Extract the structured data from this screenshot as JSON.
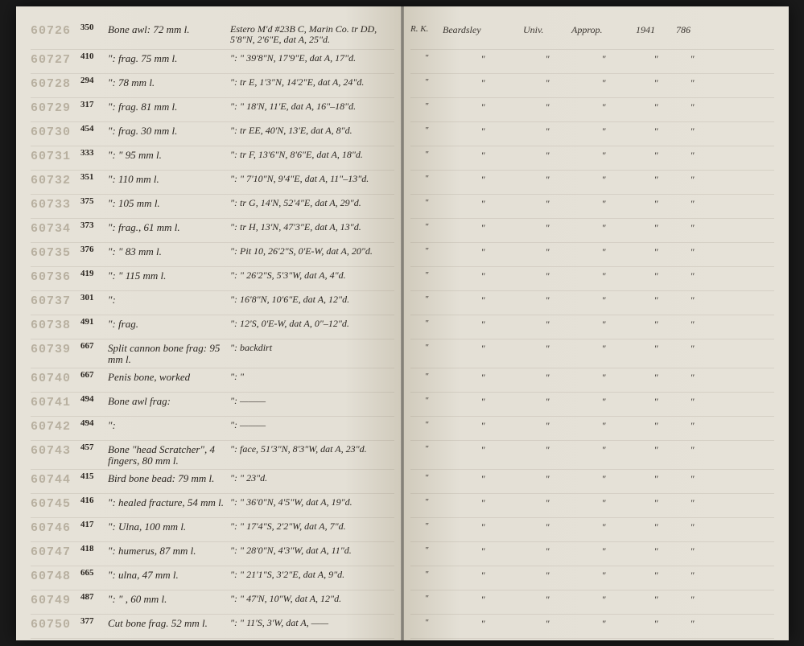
{
  "page": {
    "background_color": "#e6e2d8",
    "text_color": "#2a2520",
    "id_color": "#b8b0a0",
    "rule_color": "rgba(120,110,95,0.15)"
  },
  "header_right": {
    "col1": "R. K.",
    "col2": "Beardsley",
    "col3": "Univ.",
    "col4": "Approp.",
    "col5": "1941",
    "col6": "786"
  },
  "rows": [
    {
      "id": "60726",
      "num": "350",
      "desc": "Bone awl: 72 mm l.",
      "loc": "Estero M'd #23B C, Marin Co.\ntr DD, 5'8\"N, 2'6\"E, dat A, 25\"d.",
      "tall": true
    },
    {
      "id": "60727",
      "num": "410",
      "desc": "\": frag. 75 mm l.",
      "loc": "\":  \" 39'8\"N, 17'9\"E, dat A, 17\"d."
    },
    {
      "id": "60728",
      "num": "294",
      "desc": "\": 78 mm l.",
      "loc": "\": tr E, 1'3\"N, 14'2\"E, dat A, 24\"d."
    },
    {
      "id": "60729",
      "num": "317",
      "desc": "\": frag. 81 mm l.",
      "loc": "\":  \" 18'N, 11'E, dat A, 16\"–18\"d."
    },
    {
      "id": "60730",
      "num": "454",
      "desc": "\": frag. 30 mm l.",
      "loc": "\": tr EE, 40'N, 13'E, dat A, 8\"d."
    },
    {
      "id": "60731",
      "num": "333",
      "desc": "\":  \"  95 mm l.",
      "loc": "\": tr F, 13'6\"N, 8'6\"E, dat A, 18\"d."
    },
    {
      "id": "60732",
      "num": "351",
      "desc": "\": 110 mm l.",
      "loc": "\":  \" 7'10\"N, 9'4\"E, dat A, 11\"–13\"d."
    },
    {
      "id": "60733",
      "num": "375",
      "desc": "\": 105 mm l.",
      "loc": "\": tr G, 14'N, 52'4\"E, dat A, 29\"d."
    },
    {
      "id": "60734",
      "num": "373",
      "desc": "\": frag., 61 mm l.",
      "loc": "\": tr H, 13'N, 47'3\"E, dat A, 13\"d."
    },
    {
      "id": "60735",
      "num": "376",
      "desc": "\":  \"  83 mm l.",
      "loc": "\": Pit 10, 26'2\"S, 0'E-W, dat A, 20\"d."
    },
    {
      "id": "60736",
      "num": "419",
      "desc": "\":  \"  115 mm l.",
      "loc": "\":  \" 26'2\"S, 5'3\"W, dat A, 4\"d."
    },
    {
      "id": "60737",
      "num": "301",
      "desc": "\":",
      "loc": "\": 16'8\"N, 10'6\"E, dat A, 12\"d."
    },
    {
      "id": "60738",
      "num": "491",
      "desc": "\": frag.",
      "loc": "\": 12'S, 0'E-W, dat A, 0\"–12\"d."
    },
    {
      "id": "60739",
      "num": "667",
      "desc": "Split cannon bone frag:\n95 mm l.",
      "loc": "\": backdirt",
      "tall": true
    },
    {
      "id": "60740",
      "num": "667",
      "desc": "Penis bone, worked",
      "loc": "\":    \""
    },
    {
      "id": "60741",
      "num": "494",
      "desc": "Bone awl frag:",
      "loc": "\":  ———"
    },
    {
      "id": "60742",
      "num": "494",
      "desc": "\":",
      "loc": "\":  ———"
    },
    {
      "id": "60743",
      "num": "457",
      "desc": "Bone \"head Scratcher\", 4 fingers, 80 mm l.",
      "loc": "\": face, 51'3\"N, 8'3\"W, dat A, 23\"d.",
      "tall": true
    },
    {
      "id": "60744",
      "num": "415",
      "desc": "Bird bone bead: 79 mm l.",
      "loc": "\":  \"  23\"d."
    },
    {
      "id": "60745",
      "num": "416",
      "desc": "\": healed fracture, 54 mm l.",
      "loc": "\":  \" 36'0\"N, 4'5\"W, dat A, 19\"d."
    },
    {
      "id": "60746",
      "num": "417",
      "desc": "\": Ulna, 100 mm l.",
      "loc": "\":  \" 17'4\"S, 2'2\"W, dat A, 7\"d."
    },
    {
      "id": "60747",
      "num": "418",
      "desc": "\": humerus, 87 mm l.",
      "loc": "\":  \" 28'0\"N, 4'3\"W, dat A, 11\"d."
    },
    {
      "id": "60748",
      "num": "665",
      "desc": "\": ulna, 47 mm l.",
      "loc": "\":  \" 21'1\"S, 3'2\"E, dat A, 9\"d."
    },
    {
      "id": "60749",
      "num": "487",
      "desc": "\":  \"  , 60 mm l.",
      "loc": "\":  \" 47'N, 10\"W, dat A, 12\"d."
    },
    {
      "id": "60750",
      "num": "377",
      "desc": "Cut bone frag. 52 mm l.",
      "loc": "\":  \" 11'S, 3'W, dat A, ——"
    }
  ]
}
